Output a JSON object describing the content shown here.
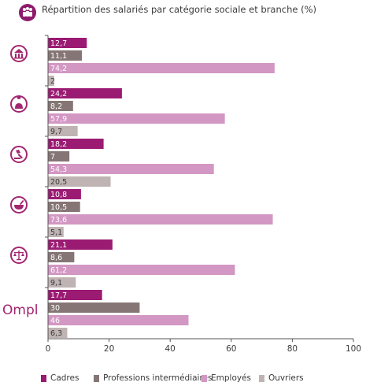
{
  "title": "Répartition des salariés par catégorie sociale et branche (%)",
  "header_icon": "group-people-icon",
  "colors": {
    "accent": "#8e1a6b",
    "cadres": "#9b1a72",
    "intermediaires": "#857675",
    "employes": "#d397c3",
    "ouvriers": "#bfb3b3",
    "axis": "#555555",
    "icon": "#a3266f"
  },
  "branch_icons": [
    "bank-building-icon",
    "person-badge-icon",
    "gavel-icon",
    "mortar-pestle-icon",
    "scales-justice-icon"
  ],
  "logo_text": "Ompl",
  "chart_data": {
    "type": "bar",
    "orientation": "horizontal",
    "title": "Répartition des salariés par catégorie sociale et branche (%)",
    "xlim": [
      0,
      100
    ],
    "xticks": [
      "0",
      "20",
      "40",
      "60",
      "80",
      "100"
    ],
    "legend_position": "bottom",
    "grid": false,
    "series": [
      {
        "name": "Cadres",
        "values": [
          12.7,
          24.2,
          18.2,
          10.8,
          21.1,
          17.7
        ],
        "labels": [
          "12,7",
          "24,2",
          "18,2",
          "10,8",
          "21,1",
          "17,7"
        ]
      },
      {
        "name": "Professions intermédiaires",
        "values": [
          11.1,
          8.2,
          7,
          10.5,
          8.6,
          30
        ],
        "labels": [
          "11,1",
          "8,2",
          "7",
          "10,5",
          "8,6",
          "30"
        ]
      },
      {
        "name": "Employés",
        "values": [
          74.2,
          57.9,
          54.3,
          73.6,
          61.2,
          46
        ],
        "labels": [
          "74,2",
          "57,9",
          "54,3",
          "73,6",
          "61,2",
          "46"
        ]
      },
      {
        "name": "Ouvriers",
        "values": [
          2,
          9.7,
          20.5,
          5.1,
          9.1,
          6.3
        ],
        "labels": [
          "2",
          "9,7",
          "20,5",
          "5,1",
          "9,1",
          "6,3"
        ]
      }
    ]
  }
}
